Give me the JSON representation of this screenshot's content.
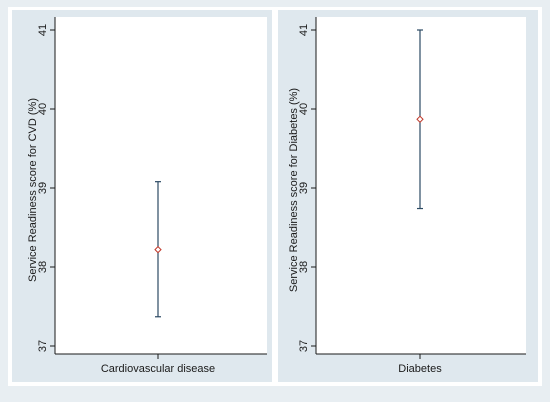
{
  "chart_data": [
    {
      "type": "errorbar",
      "ylabel": "Service  Readiness score for CVD (%)",
      "category": "Cardiovascular disease",
      "ylim": [
        37,
        41
      ],
      "yticks": [
        "37",
        "38",
        "39",
        "40",
        "41"
      ],
      "point": 38.22,
      "ci": [
        37.37,
        39.08
      ],
      "colors": {
        "marker": "#c0392b",
        "whisker": "#2c4a63"
      }
    },
    {
      "type": "errorbar",
      "ylabel": "Service  Readiness score for Diabetes (%)",
      "category": "Diabetes",
      "ylim": [
        37,
        41
      ],
      "yticks": [
        "37",
        "38",
        "39",
        "40",
        "41"
      ],
      "point": 39.87,
      "ci": [
        38.74,
        41.0
      ],
      "colors": {
        "marker": "#c0392b",
        "whisker": "#2c4a63"
      }
    }
  ]
}
